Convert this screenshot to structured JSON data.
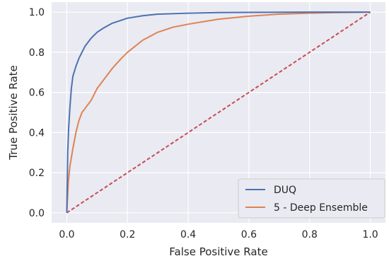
{
  "chart_data": {
    "type": "line",
    "title": "",
    "xlabel": "False Positive Rate",
    "ylabel": "True Positive Rate",
    "xlim": [
      -0.05,
      1.05
    ],
    "ylim": [
      -0.05,
      1.05
    ],
    "xticks": [
      0.0,
      0.2,
      0.4,
      0.6,
      0.8,
      1.0
    ],
    "yticks": [
      0.0,
      0.2,
      0.4,
      0.6,
      0.8,
      1.0
    ],
    "xtick_labels": [
      "0.0",
      "0.2",
      "0.4",
      "0.6",
      "0.8",
      "1.0"
    ],
    "ytick_labels": [
      "0.0",
      "0.2",
      "0.4",
      "0.6",
      "0.8",
      "1.0"
    ],
    "grid": true,
    "legend_position": "bottom-right",
    "series": [
      {
        "name": "DUQ",
        "color": "#4c72b0",
        "style": "solid",
        "x": [
          0.0,
          0.003,
          0.006,
          0.01,
          0.015,
          0.02,
          0.03,
          0.04,
          0.05,
          0.06,
          0.08,
          0.1,
          0.12,
          0.15,
          0.18,
          0.2,
          0.25,
          0.3,
          0.4,
          0.5,
          0.6,
          0.8,
          1.0
        ],
        "y": [
          0.0,
          0.3,
          0.42,
          0.52,
          0.62,
          0.68,
          0.73,
          0.77,
          0.8,
          0.83,
          0.87,
          0.9,
          0.92,
          0.945,
          0.96,
          0.97,
          0.982,
          0.99,
          0.995,
          0.998,
          0.999,
          1.0,
          1.0
        ]
      },
      {
        "name": "5 - Deep Ensemble",
        "color": "#dd8452",
        "style": "solid",
        "x": [
          0.0,
          0.005,
          0.01,
          0.02,
          0.03,
          0.04,
          0.05,
          0.06,
          0.08,
          0.1,
          0.12,
          0.15,
          0.18,
          0.2,
          0.25,
          0.3,
          0.35,
          0.4,
          0.5,
          0.6,
          0.7,
          0.8,
          0.9,
          1.0
        ],
        "y": [
          0.0,
          0.15,
          0.23,
          0.32,
          0.4,
          0.46,
          0.5,
          0.52,
          0.56,
          0.62,
          0.66,
          0.72,
          0.77,
          0.8,
          0.86,
          0.9,
          0.925,
          0.94,
          0.965,
          0.98,
          0.99,
          0.995,
          0.998,
          1.0
        ]
      },
      {
        "name": "",
        "color": "#c44e52",
        "style": "dashed",
        "x": [
          0.0,
          1.0
        ],
        "y": [
          0.0,
          1.0
        ]
      }
    ]
  }
}
